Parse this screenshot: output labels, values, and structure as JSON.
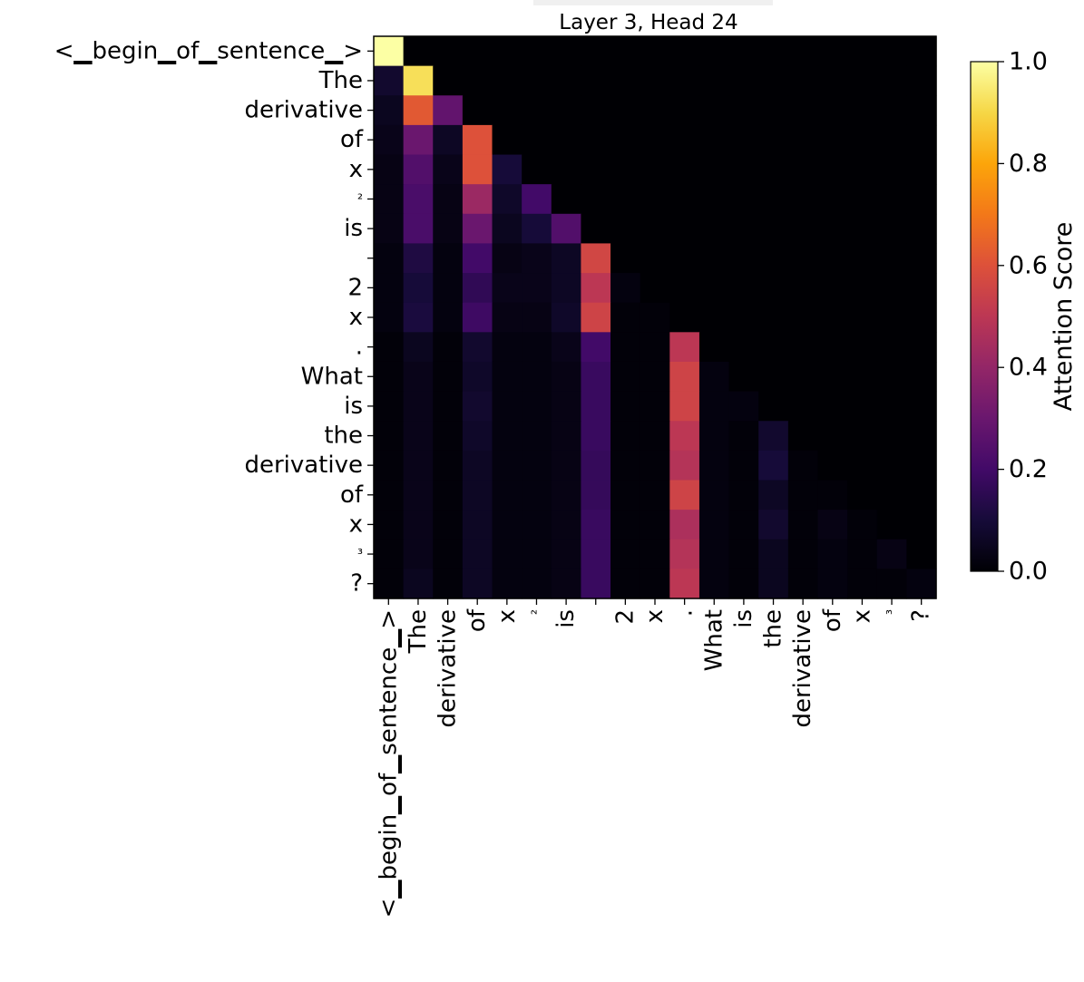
{
  "chart_data": {
    "type": "heatmap",
    "title": "Layer 3, Head 24",
    "tokens": [
      "<▁begin▁of▁sentence▁>",
      "The",
      "derivative",
      "of",
      "x",
      "²",
      "is",
      "",
      "2",
      "x",
      ".",
      "What",
      "is",
      "the",
      "derivative",
      "of",
      "x",
      "³",
      "?"
    ],
    "x_tick_labels": [
      "<▁begin▁of▁sentence▁>",
      "The",
      "derivative",
      "of",
      "x",
      "²",
      "is",
      "",
      "2",
      "x",
      ".",
      "What",
      "is",
      "the",
      "derivative",
      "of",
      "x",
      "³",
      "?"
    ],
    "y_tick_labels": [
      "<▁begin▁of▁sentence▁>",
      "The",
      "derivative",
      "of",
      "x",
      "²",
      "is",
      "",
      "2",
      "x",
      ".",
      "What",
      "is",
      "the",
      "derivative",
      "of",
      "x",
      "³",
      "?"
    ],
    "colorbar": {
      "label": "Attention Score",
      "range": [
        0.0,
        1.0
      ],
      "ticks": [
        0.0,
        0.2,
        0.4,
        0.6,
        0.8,
        1.0
      ],
      "tick_labels": [
        "0.0",
        "0.2",
        "0.4",
        "0.6",
        "0.8",
        "1.0"
      ],
      "colormap": "inferno"
    },
    "matrix": [
      [
        1.0,
        0,
        0,
        0,
        0,
        0,
        0,
        0,
        0,
        0,
        0,
        0,
        0,
        0,
        0,
        0,
        0,
        0,
        0
      ],
      [
        0.08,
        0.92,
        0,
        0,
        0,
        0,
        0,
        0,
        0,
        0,
        0,
        0,
        0,
        0,
        0,
        0,
        0,
        0,
        0
      ],
      [
        0.05,
        0.62,
        0.28,
        0,
        0,
        0,
        0,
        0,
        0,
        0,
        0,
        0,
        0,
        0,
        0,
        0,
        0,
        0,
        0
      ],
      [
        0.04,
        0.3,
        0.06,
        0.6,
        0,
        0,
        0,
        0,
        0,
        0,
        0,
        0,
        0,
        0,
        0,
        0,
        0,
        0,
        0
      ],
      [
        0.03,
        0.24,
        0.04,
        0.6,
        0.1,
        0,
        0,
        0,
        0,
        0,
        0,
        0,
        0,
        0,
        0,
        0,
        0,
        0,
        0
      ],
      [
        0.03,
        0.22,
        0.03,
        0.42,
        0.07,
        0.2,
        0,
        0,
        0,
        0,
        0,
        0,
        0,
        0,
        0,
        0,
        0,
        0,
        0
      ],
      [
        0.03,
        0.22,
        0.03,
        0.3,
        0.05,
        0.1,
        0.24,
        0,
        0,
        0,
        0,
        0,
        0,
        0,
        0,
        0,
        0,
        0,
        0
      ],
      [
        0.02,
        0.12,
        0.02,
        0.2,
        0.03,
        0.04,
        0.06,
        0.56,
        0,
        0,
        0,
        0,
        0,
        0,
        0,
        0,
        0,
        0,
        0
      ],
      [
        0.02,
        0.1,
        0.02,
        0.16,
        0.04,
        0.04,
        0.06,
        0.5,
        0.02,
        0,
        0,
        0,
        0,
        0,
        0,
        0,
        0,
        0,
        0
      ],
      [
        0.02,
        0.11,
        0.02,
        0.19,
        0.03,
        0.03,
        0.07,
        0.55,
        0.01,
        0.01,
        0,
        0,
        0,
        0,
        0,
        0,
        0,
        0,
        0
      ],
      [
        0.01,
        0.05,
        0.01,
        0.08,
        0.02,
        0.02,
        0.04,
        0.2,
        0.01,
        0.01,
        0.5,
        0,
        0,
        0,
        0,
        0,
        0,
        0,
        0
      ],
      [
        0.01,
        0.04,
        0.01,
        0.07,
        0.02,
        0.02,
        0.03,
        0.18,
        0.01,
        0.01,
        0.55,
        0.02,
        0,
        0,
        0,
        0,
        0,
        0,
        0
      ],
      [
        0.01,
        0.04,
        0.01,
        0.08,
        0.02,
        0.02,
        0.03,
        0.18,
        0.01,
        0.01,
        0.55,
        0.02,
        0.02,
        0,
        0,
        0,
        0,
        0,
        0
      ],
      [
        0.01,
        0.04,
        0.01,
        0.07,
        0.02,
        0.02,
        0.03,
        0.18,
        0.01,
        0.01,
        0.5,
        0.02,
        0.01,
        0.08,
        0,
        0,
        0,
        0,
        0
      ],
      [
        0.01,
        0.04,
        0.01,
        0.06,
        0.02,
        0.02,
        0.03,
        0.17,
        0.01,
        0.01,
        0.48,
        0.02,
        0.01,
        0.1,
        0.01,
        0,
        0,
        0,
        0
      ],
      [
        0.01,
        0.04,
        0.01,
        0.06,
        0.02,
        0.02,
        0.03,
        0.17,
        0.01,
        0.01,
        0.55,
        0.02,
        0.01,
        0.06,
        0.01,
        0.01,
        0,
        0,
        0
      ],
      [
        0.01,
        0.04,
        0.01,
        0.06,
        0.02,
        0.02,
        0.03,
        0.18,
        0.01,
        0.01,
        0.46,
        0.02,
        0.01,
        0.08,
        0.01,
        0.03,
        0.01,
        0,
        0
      ],
      [
        0.01,
        0.04,
        0.01,
        0.06,
        0.02,
        0.02,
        0.03,
        0.18,
        0.01,
        0.01,
        0.48,
        0.02,
        0.01,
        0.05,
        0.01,
        0.02,
        0.01,
        0.03,
        0
      ],
      [
        0.01,
        0.05,
        0.01,
        0.06,
        0.02,
        0.02,
        0.03,
        0.18,
        0.01,
        0.01,
        0.5,
        0.02,
        0.01,
        0.05,
        0.01,
        0.02,
        0.01,
        0.01,
        0.02
      ]
    ]
  }
}
